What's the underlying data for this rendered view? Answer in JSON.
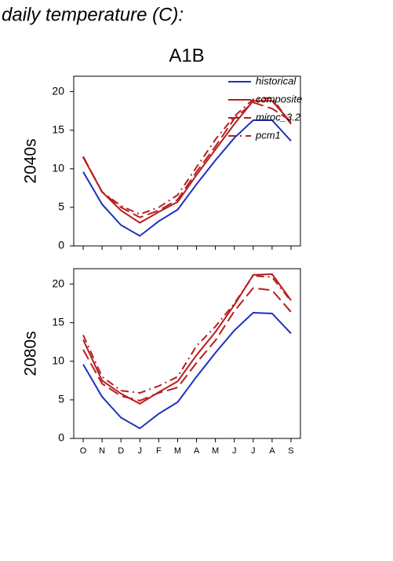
{
  "page_title": "daily temperature (C):",
  "scenario": "A1B",
  "chart_data": [
    {
      "type": "line",
      "ylabel": "2040s",
      "categories": [
        null,
        null,
        null,
        null,
        null,
        null,
        null,
        null,
        null,
        null,
        null,
        null
      ],
      "ylim": [
        0,
        22
      ],
      "yticks": [
        0,
        5,
        10,
        15,
        20
      ],
      "legend": "upper right",
      "series": [
        {
          "name": "historical",
          "color": "#1f2fbf",
          "dash": "solid",
          "values": [
            9.6,
            5.4,
            2.7,
            1.3,
            3.2,
            4.7,
            8.0,
            11.1,
            14.0,
            16.3,
            16.3,
            13.6
          ]
        },
        {
          "name": "composite",
          "color": "#b81e1e",
          "dash": "solid",
          "values": [
            11.5,
            7.0,
            4.6,
            3.0,
            4.4,
            5.7,
            9.2,
            12.5,
            15.8,
            18.8,
            18.8,
            16.0
          ]
        },
        {
          "name": "miroc_3.2",
          "color": "#b81e1e",
          "dash": "long",
          "values": [
            11.6,
            7.0,
            5.0,
            3.7,
            4.6,
            6.0,
            9.6,
            12.9,
            16.5,
            18.6,
            17.8,
            16.2
          ]
        },
        {
          "name": "pcm1",
          "color": "#b81e1e",
          "dash": "dashdot",
          "values": [
            11.5,
            7.0,
            5.2,
            4.1,
            5.0,
            6.6,
            10.2,
            13.8,
            16.8,
            19.0,
            19.2,
            15.8
          ]
        }
      ]
    },
    {
      "type": "line",
      "ylabel": "2080s",
      "categories": [
        "O",
        "N",
        "D",
        "J",
        "F",
        "M",
        "A",
        "M",
        "J",
        "J",
        "A",
        "S"
      ],
      "ylim": [
        0,
        22
      ],
      "yticks": [
        0,
        5,
        10,
        15,
        20
      ],
      "legend": "none",
      "series": [
        {
          "color": "#1f2fbf",
          "dash": "solid",
          "values": [
            9.6,
            5.4,
            2.7,
            1.3,
            3.2,
            4.7,
            8.0,
            11.1,
            14.0,
            16.3,
            16.2,
            13.6
          ]
        },
        {
          "color": "#b81e1e",
          "dash": "solid",
          "values": [
            12.8,
            7.5,
            5.8,
            4.5,
            6.0,
            7.4,
            10.8,
            13.8,
            17.3,
            21.2,
            21.3,
            17.9
          ]
        },
        {
          "color": "#b81e1e",
          "dash": "long",
          "values": [
            11.5,
            7.1,
            5.5,
            4.9,
            5.9,
            6.6,
            9.8,
            12.7,
            16.5,
            19.5,
            19.2,
            16.4
          ]
        },
        {
          "color": "#b81e1e",
          "dash": "dashdot",
          "values": [
            13.4,
            8.0,
            6.2,
            5.9,
            6.8,
            8.0,
            12.0,
            14.5,
            17.5,
            21.1,
            20.9,
            17.8
          ]
        }
      ]
    }
  ]
}
